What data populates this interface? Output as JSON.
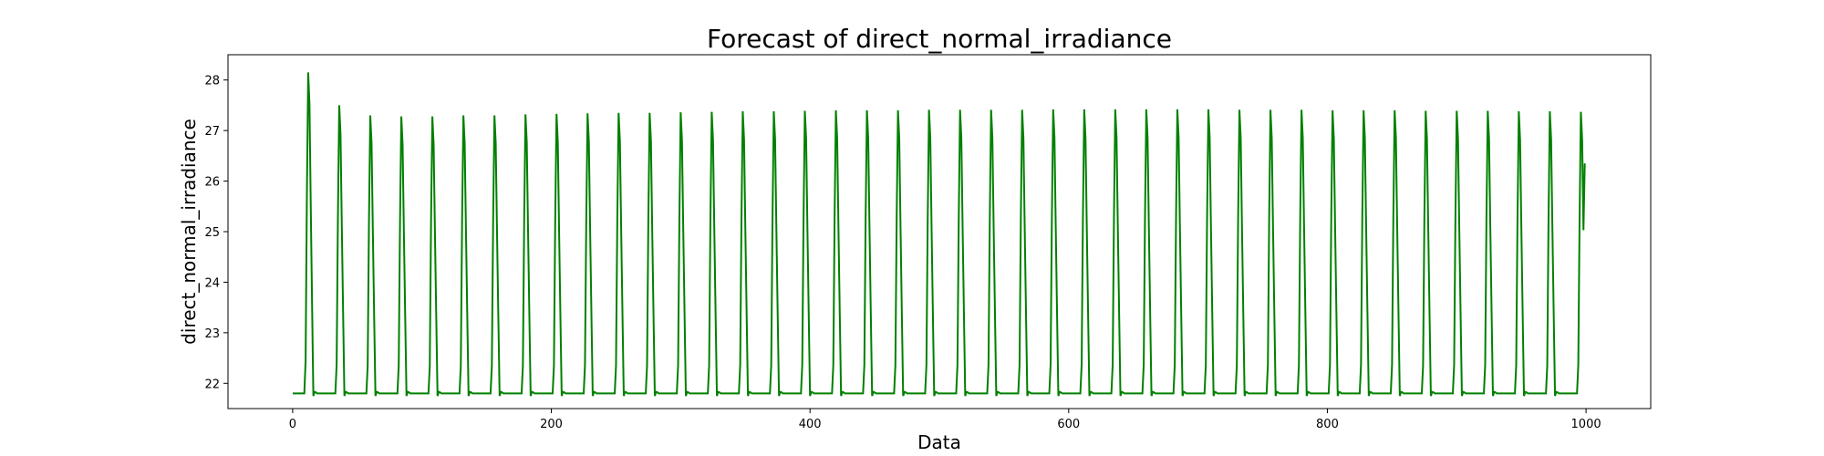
{
  "chart_data": {
    "type": "line",
    "title": "Forecast of direct_normal_irradiance",
    "xlabel": "Data",
    "ylabel": "direct_normal_irradiance",
    "xlim": [
      -50,
      1050
    ],
    "ylim": [
      21.5,
      28.5
    ],
    "xticks": [
      0,
      200,
      400,
      600,
      800,
      1000
    ],
    "yticks": [
      22,
      23,
      24,
      25,
      26,
      27,
      28
    ],
    "xtick_labels": [
      "0",
      "200",
      "400",
      "600",
      "800",
      "1000"
    ],
    "ytick_labels": [
      "22",
      "23",
      "24",
      "25",
      "26",
      "27",
      "28"
    ],
    "grid": false,
    "series": [
      {
        "color": "#008000",
        "period": 24,
        "n_points": 1000,
        "baseline": 21.8,
        "peak_values": [
          28.15,
          27.5,
          27.3,
          27.28,
          27.28,
          27.3,
          27.3,
          27.32,
          27.33,
          27.34,
          27.35,
          27.35,
          27.36,
          27.37,
          27.38,
          27.38,
          27.39,
          27.4,
          27.4,
          27.4,
          27.41,
          27.41,
          27.41,
          27.41,
          27.42,
          27.42,
          27.42,
          27.42,
          27.42,
          27.42,
          27.41,
          27.41,
          27.41,
          27.4,
          27.4,
          27.4,
          27.39,
          27.39,
          27.39,
          27.38,
          27.38,
          27.37
        ],
        "peak_x": [
          12,
          36,
          60,
          84,
          108,
          132,
          156,
          180,
          204,
          228,
          252,
          276,
          300,
          324,
          348,
          372,
          396,
          420,
          444,
          468,
          492,
          516,
          540,
          564,
          588,
          612,
          636,
          660,
          684,
          708,
          732,
          756,
          780,
          804,
          828,
          852,
          876,
          900,
          924,
          948,
          972,
          996
        ],
        "end_value": 26.35
      }
    ]
  }
}
